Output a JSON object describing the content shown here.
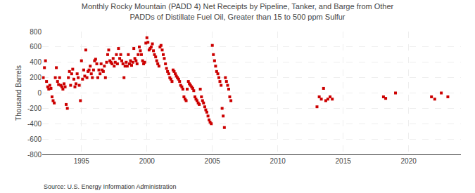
{
  "chart_data": {
    "type": "scatter",
    "title": "Monthly Rocky Mountain (PADD 4) Net Receipts by Pipeline, Tanker, and Barge from Other\nPADDs of Distillate Fuel Oil, Greater than 15 to 500 ppm Sulfur",
    "ylabel": "Thousand Barrels",
    "annotations": [
      "Source: U.S. Energy Information Administration"
    ],
    "color": "#cc0000",
    "marker": "square",
    "grid": true,
    "xlim": [
      1992,
      2024
    ],
    "ylim": [
      -800,
      800
    ],
    "xticks": [
      1995,
      2000,
      2005,
      2010,
      2015,
      2020
    ],
    "yticks": [
      -800,
      -600,
      -400,
      -200,
      0,
      200,
      400,
      600,
      800
    ],
    "x": [
      1992.08,
      1992.17,
      1992.25,
      1992.33,
      1992.42,
      1992.5,
      1992.58,
      1992.67,
      1992.75,
      1992.83,
      1992.92,
      1993.0,
      1993.08,
      1993.17,
      1993.25,
      1993.33,
      1993.42,
      1993.5,
      1993.58,
      1993.67,
      1993.75,
      1993.83,
      1993.92,
      1994.0,
      1994.08,
      1994.17,
      1994.25,
      1994.33,
      1994.42,
      1994.5,
      1994.58,
      1994.67,
      1994.75,
      1994.83,
      1994.92,
      1995.0,
      1995.08,
      1995.17,
      1995.25,
      1995.33,
      1995.42,
      1995.5,
      1995.58,
      1995.67,
      1995.75,
      1995.83,
      1995.92,
      1996.0,
      1996.08,
      1996.17,
      1996.25,
      1996.33,
      1996.42,
      1996.5,
      1996.58,
      1996.67,
      1996.75,
      1996.83,
      1996.92,
      1997.0,
      1997.08,
      1997.17,
      1997.25,
      1997.33,
      1997.42,
      1997.5,
      1997.58,
      1997.67,
      1997.75,
      1997.83,
      1997.92,
      1998.0,
      1998.08,
      1998.17,
      1998.25,
      1998.33,
      1998.42,
      1998.5,
      1998.58,
      1998.67,
      1998.75,
      1998.83,
      1998.92,
      1999.0,
      1999.08,
      1999.17,
      1999.25,
      1999.33,
      1999.42,
      1999.5,
      1999.58,
      1999.67,
      1999.75,
      1999.83,
      1999.92,
      2000.0,
      2000.08,
      2000.17,
      2000.25,
      2000.33,
      2000.42,
      2000.5,
      2000.58,
      2000.67,
      2000.75,
      2000.83,
      2000.92,
      2001.0,
      2001.08,
      2001.17,
      2001.25,
      2001.33,
      2001.42,
      2001.5,
      2001.58,
      2001.67,
      2001.75,
      2001.83,
      2001.92,
      2002.0,
      2002.08,
      2002.17,
      2002.25,
      2002.33,
      2002.42,
      2002.5,
      2002.58,
      2002.67,
      2002.75,
      2002.83,
      2002.92,
      2003.0,
      2003.08,
      2003.17,
      2003.25,
      2003.33,
      2003.42,
      2003.5,
      2003.58,
      2003.67,
      2003.75,
      2003.83,
      2003.92,
      2004.0,
      2004.08,
      2004.17,
      2004.25,
      2004.33,
      2004.42,
      2004.5,
      2004.58,
      2004.67,
      2004.75,
      2004.83,
      2004.92,
      2005.0,
      2005.08,
      2005.17,
      2005.25,
      2005.33,
      2005.42,
      2005.5,
      2005.58,
      2005.67,
      2005.75,
      2005.83,
      2005.92,
      2006.0,
      2006.08,
      2006.17,
      2006.25,
      2006.33,
      2006.42,
      2013.0,
      2013.17,
      2013.33,
      2013.5,
      2013.67,
      2013.83,
      2014.0,
      2014.17,
      2018.08,
      2018.25,
      2019.0,
      2021.75,
      2022.0,
      2022.5,
      2023.0
    ],
    "values": [
      200,
      330,
      420,
      150,
      80,
      50,
      100,
      60,
      -50,
      -100,
      -130,
      200,
      330,
      150,
      110,
      200,
      100,
      80,
      50,
      120,
      80,
      -150,
      -200,
      200,
      280,
      100,
      250,
      310,
      180,
      80,
      120,
      250,
      200,
      100,
      -100,
      420,
      180,
      300,
      220,
      560,
      200,
      280,
      300,
      350,
      250,
      200,
      300,
      420,
      440,
      380,
      200,
      300,
      250,
      380,
      300,
      280,
      350,
      200,
      400,
      500,
      560,
      420,
      400,
      380,
      450,
      350,
      400,
      500,
      380,
      580,
      450,
      500,
      420,
      380,
      200,
      350,
      400,
      350,
      500,
      380,
      420,
      360,
      400,
      580,
      450,
      420,
      380,
      500,
      600,
      550,
      500,
      420,
      380,
      400,
      650,
      720,
      660,
      560,
      580,
      600,
      640,
      550,
      500,
      470,
      420,
      380,
      350,
      600,
      620,
      560,
      500,
      450,
      380,
      320,
      280,
      250,
      200,
      180,
      150,
      300,
      280,
      250,
      220,
      200,
      180,
      150,
      100,
      80,
      50,
      -50,
      -80,
      -100,
      50,
      150,
      120,
      100,
      80,
      60,
      30,
      -50,
      -80,
      -100,
      -130,
      -150,
      50,
      -50,
      -100,
      -130,
      -180,
      -220,
      -250,
      -300,
      -350,
      -380,
      -400,
      620,
      500,
      420,
      350,
      280,
      250,
      200,
      150,
      100,
      -200,
      -300,
      -450,
      200,
      150,
      100,
      50,
      -50,
      -100,
      -180,
      -50,
      -80,
      60,
      -100,
      -80,
      -50,
      -80,
      -50,
      -70,
      0,
      -50,
      -80,
      0,
      -50
    ]
  }
}
